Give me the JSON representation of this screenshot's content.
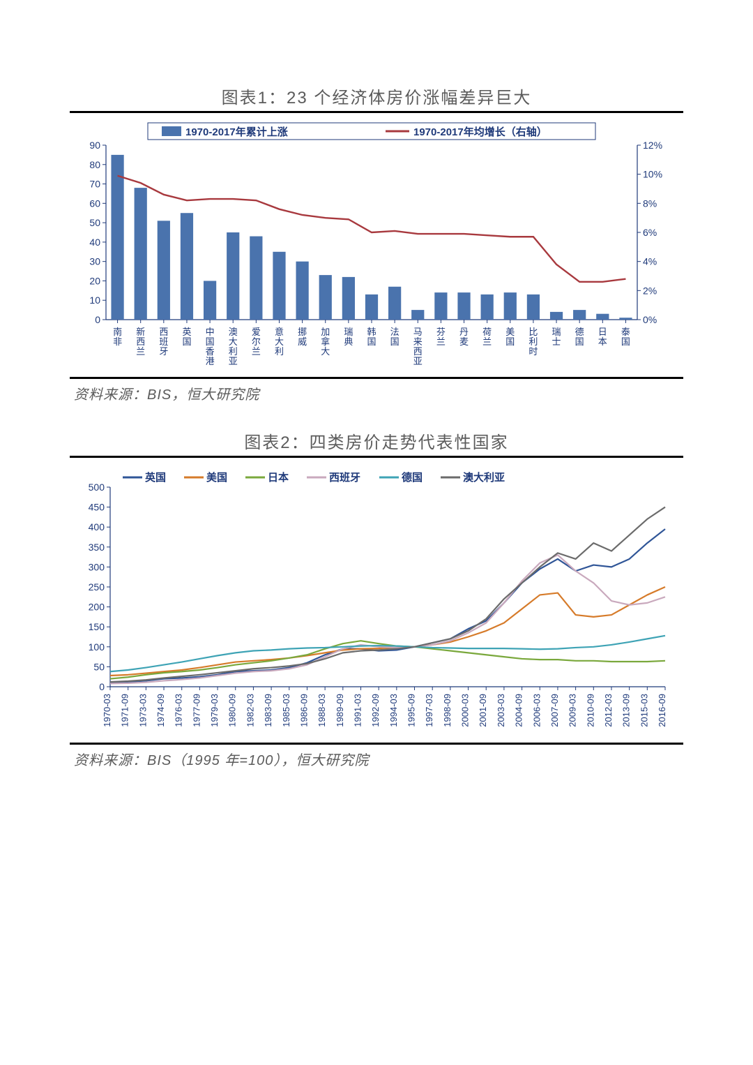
{
  "chart1": {
    "title": "图表1：23 个经济体房价涨幅差异巨大",
    "source": "资料来源：BIS，恒大研究院",
    "legend_bar": "1970-2017年累计上涨",
    "legend_line": "1970-2017年均增长（右轴）",
    "categories": [
      "南非",
      "新西兰",
      "西班牙",
      "英国",
      "中国香港",
      "澳大利亚",
      "爱尔兰",
      "意大利",
      "挪威",
      "加拿大",
      "瑞典",
      "韩国",
      "法国",
      "马来西亚",
      "芬兰",
      "丹麦",
      "荷兰",
      "美国",
      "比利时",
      "瑞士",
      "德国",
      "日本",
      "泰国"
    ],
    "bar_values": [
      85,
      68,
      51,
      55,
      20,
      45,
      43,
      35,
      30,
      23,
      22,
      13,
      17,
      5,
      14,
      14,
      13,
      14,
      13,
      4,
      5,
      3,
      1
    ],
    "line_values_pct": [
      9.9,
      9.4,
      8.6,
      8.2,
      8.3,
      8.3,
      8.2,
      7.6,
      7.2,
      7.0,
      6.9,
      6.0,
      6.1,
      5.9,
      5.9,
      5.9,
      5.8,
      5.7,
      5.7,
      3.8,
      2.6,
      2.6,
      2.8
    ],
    "y1_min": 0,
    "y1_max": 90,
    "y1_step": 10,
    "y2_min": 0,
    "y2_max": 12,
    "y2_step": 2,
    "bar_color": "#4a73ad",
    "line_color": "#a8393e",
    "label_color": "#1f3a7a",
    "legend_box_border": "#1f3a7a",
    "font_axis": 14
  },
  "chart2": {
    "title": "图表2：四类房价走势代表性国家",
    "source": "资料来源：BIS（1995 年=100），恒大研究院",
    "y_min": 0,
    "y_max": 500,
    "y_step": 50,
    "x_labels": [
      "1970-03",
      "1971-09",
      "1973-03",
      "1974-09",
      "1976-03",
      "1977-09",
      "1979-03",
      "1980-09",
      "1982-03",
      "1983-09",
      "1985-03",
      "1986-09",
      "1988-03",
      "1989-09",
      "1991-03",
      "1992-09",
      "1994-03",
      "1995-09",
      "1997-03",
      "1998-09",
      "2000-03",
      "2001-09",
      "2003-03",
      "2004-09",
      "2006-03",
      "2007-09",
      "2009-03",
      "2010-09",
      "2012-03",
      "2013-09",
      "2015-03",
      "2016-09"
    ],
    "series": [
      {
        "name": "英国",
        "color": "#2f5597",
        "vals": [
          10,
          12,
          15,
          20,
          22,
          25,
          30,
          38,
          40,
          42,
          48,
          60,
          80,
          95,
          95,
          90,
          92,
          100,
          110,
          120,
          145,
          165,
          210,
          260,
          295,
          320,
          290,
          305,
          300,
          320,
          360,
          395
        ]
      },
      {
        "name": "美国",
        "color": "#d67b2a",
        "vals": [
          28,
          30,
          34,
          38,
          42,
          48,
          55,
          62,
          65,
          68,
          72,
          78,
          85,
          92,
          95,
          96,
          98,
          100,
          105,
          112,
          125,
          140,
          160,
          195,
          230,
          235,
          180,
          175,
          180,
          205,
          230,
          250
        ]
      },
      {
        "name": "日本",
        "color": "#7aa83c",
        "vals": [
          20,
          24,
          30,
          35,
          38,
          42,
          48,
          55,
          60,
          65,
          72,
          80,
          95,
          108,
          115,
          108,
          102,
          100,
          95,
          90,
          85,
          80,
          75,
          70,
          68,
          68,
          65,
          65,
          63,
          63,
          63,
          65
        ]
      },
      {
        "name": "西班牙",
        "color": "#c9a9bd",
        "vals": [
          8,
          9,
          11,
          15,
          18,
          22,
          28,
          34,
          38,
          40,
          45,
          55,
          75,
          95,
          105,
          100,
          98,
          100,
          105,
          115,
          135,
          160,
          210,
          265,
          310,
          330,
          290,
          260,
          215,
          205,
          210,
          225
        ]
      },
      {
        "name": "德国",
        "color": "#3ea3b5",
        "vals": [
          38,
          42,
          48,
          55,
          62,
          70,
          78,
          85,
          90,
          92,
          95,
          97,
          98,
          100,
          102,
          103,
          102,
          100,
          98,
          97,
          96,
          96,
          96,
          95,
          94,
          95,
          98,
          100,
          105,
          112,
          120,
          128
        ]
      },
      {
        "name": "澳大利亚",
        "color": "#6b6b6b",
        "vals": [
          12,
          14,
          17,
          22,
          26,
          30,
          35,
          40,
          45,
          48,
          52,
          58,
          70,
          85,
          90,
          92,
          95,
          100,
          110,
          120,
          140,
          170,
          220,
          260,
          300,
          335,
          320,
          360,
          340,
          380,
          420,
          450
        ]
      }
    ],
    "line_width": 2.2,
    "label_color": "#1f3a7a"
  }
}
